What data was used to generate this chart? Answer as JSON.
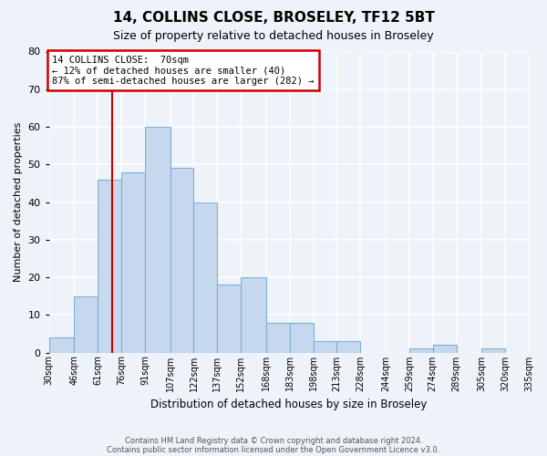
{
  "title": "14, COLLINS CLOSE, BROSELEY, TF12 5BT",
  "subtitle": "Size of property relative to detached houses in Broseley",
  "xlabel": "Distribution of detached houses by size in Broseley",
  "ylabel": "Number of detached properties",
  "bar_color": "#c5d8ed",
  "bar_edge_color": "#7fb0d8",
  "background_color": "#eef2f9",
  "grid_color": "#ffffff",
  "bin_edges": [
    30,
    46,
    61,
    76,
    91,
    107,
    122,
    137,
    152,
    168,
    183,
    198,
    213,
    228,
    244,
    259,
    274,
    289,
    305,
    320,
    335
  ],
  "bin_labels": [
    "30sqm",
    "46sqm",
    "61sqm",
    "76sqm",
    "91sqm",
    "107sqm",
    "122sqm",
    "137sqm",
    "152sqm",
    "168sqm",
    "183sqm",
    "198sqm",
    "213sqm",
    "228sqm",
    "244sqm",
    "259sqm",
    "274sqm",
    "289sqm",
    "305sqm",
    "320sqm",
    "335sqm"
  ],
  "counts": [
    4,
    15,
    46,
    48,
    60,
    49,
    40,
    18,
    20,
    8,
    8,
    3,
    3,
    0,
    0,
    1,
    2,
    0,
    1,
    0
  ],
  "ylim": [
    0,
    80
  ],
  "yticks": [
    0,
    10,
    20,
    30,
    40,
    50,
    60,
    70,
    80
  ],
  "property_line_x": 70,
  "property_line_color": "#cc0000",
  "annotation_text": "14 COLLINS CLOSE:  70sqm\n← 12% of detached houses are smaller (40)\n87% of semi-detached houses are larger (282) →",
  "annotation_box_edge_color": "#cc0000",
  "annotation_box_face_color": "#ffffff",
  "footnote1": "Contains HM Land Registry data © Crown copyright and database right 2024.",
  "footnote2": "Contains public sector information licensed under the Open Government Licence v3.0."
}
